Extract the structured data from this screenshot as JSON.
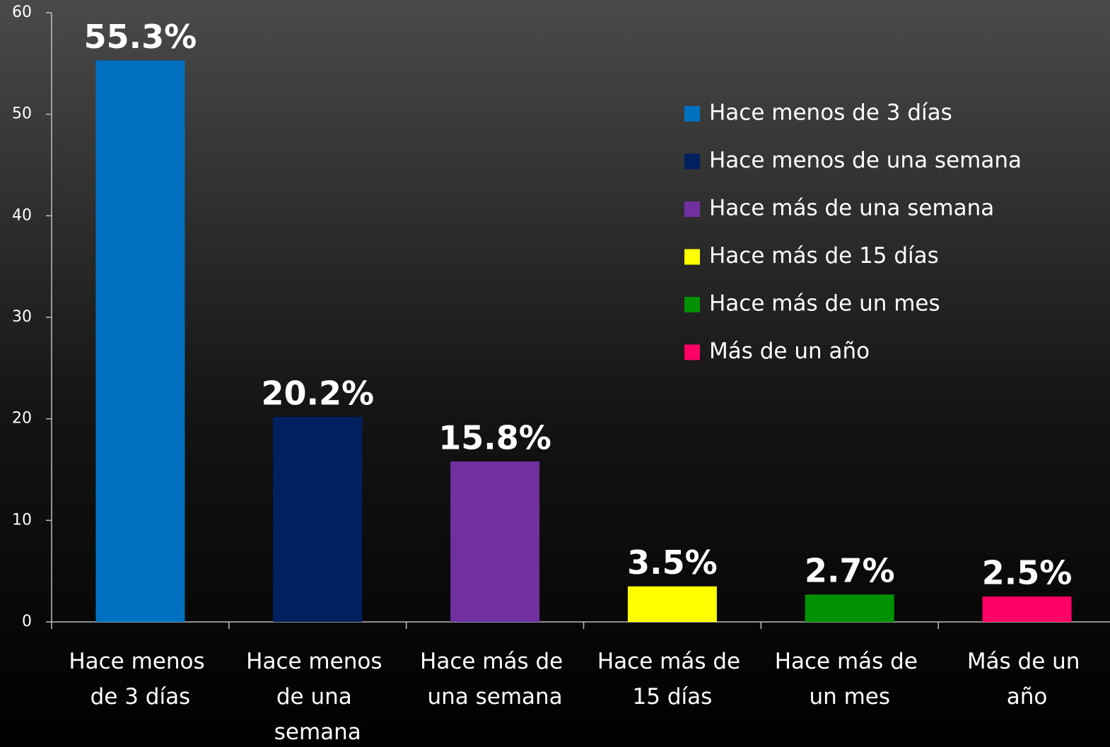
{
  "chart_data": {
    "type": "bar",
    "categories": [
      "Hace menos de 3 días",
      "Hace menos de una semana",
      "Hace más de una semana",
      "Hace más de 15 días",
      "Hace más de un mes",
      "Más de un año"
    ],
    "values": [
      55.3,
      20.2,
      15.8,
      3.5,
      2.7,
      2.5
    ],
    "value_labels": [
      "55.3%",
      "20.2%",
      "15.8%",
      "3.5%",
      "2.7%",
      "2.5%"
    ],
    "colors": [
      "#0070c0",
      "#002060",
      "#7030a0",
      "#ffff00",
      "#009000",
      "#ff0066"
    ],
    "ylim": [
      0,
      60
    ],
    "yticks": [
      0,
      10,
      20,
      30,
      40,
      50,
      60
    ],
    "legend": "upper right"
  }
}
